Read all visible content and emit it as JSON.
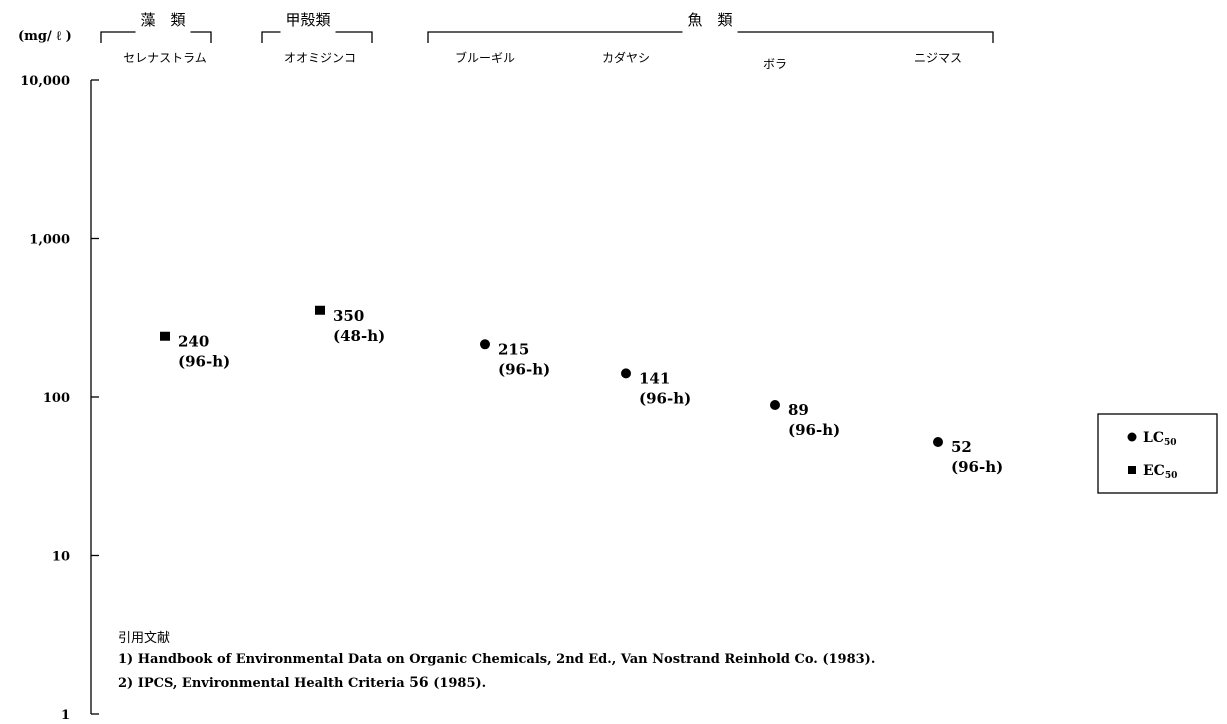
{
  "chart_data": {
    "type": "scatter",
    "yscale": "log",
    "ylim": [
      1,
      10000
    ],
    "unit_label": "(mg/ ℓ )",
    "yticks": [
      {
        "value": 10000,
        "label": "10,000"
      },
      {
        "value": 1000,
        "label": "1,000"
      },
      {
        "value": 100,
        "label": "100"
      },
      {
        "value": 10,
        "label": "10"
      },
      {
        "value": 1,
        "label": "1"
      }
    ],
    "groups": [
      {
        "label": "藻　類",
        "species_from": 0,
        "species_to": 0
      },
      {
        "label": "甲殻類",
        "species_from": 1,
        "species_to": 1
      },
      {
        "label": "魚　類",
        "species_from": 2,
        "species_to": 5
      }
    ],
    "species": [
      "セレナストラム",
      "オオミジンコ",
      "ブルーギル",
      "カダヤシ",
      "ボラ",
      "ニジマス"
    ],
    "points": [
      {
        "species": "セレナストラム",
        "value": 240,
        "label": "240",
        "duration": "(96-h)",
        "endpoint": "EC50"
      },
      {
        "species": "オオミジンコ",
        "value": 350,
        "label": "350",
        "duration": "(48-h)",
        "endpoint": "EC50"
      },
      {
        "species": "ブルーギル",
        "value": 215,
        "label": "215",
        "duration": "(96-h)",
        "endpoint": "LC50"
      },
      {
        "species": "カダヤシ",
        "value": 141,
        "label": "141",
        "duration": "(96-h)",
        "endpoint": "LC50"
      },
      {
        "species": "ボラ",
        "value": 89,
        "label": "89",
        "duration": "(96-h)",
        "endpoint": "LC50"
      },
      {
        "species": "ニジマス",
        "value": 52,
        "label": "52",
        "duration": "(96-h)",
        "endpoint": "LC50"
      }
    ],
    "legend": {
      "position": "right",
      "items": [
        {
          "marker": "circle",
          "label": "LC",
          "sub": "50"
        },
        {
          "marker": "square",
          "label": "EC",
          "sub": "50"
        }
      ]
    }
  },
  "references": {
    "heading": "引用文献",
    "items": [
      {
        "num": "1)",
        "text": "Handbook of Environmental Data on Organic Chemicals, 2nd Ed., Van Nostrand Reinhold Co. (1983)."
      },
      {
        "num": "2)",
        "text": "IPCS, Environmental Health Criteria",
        "bold": "56",
        "after": "(1985)."
      }
    ]
  }
}
